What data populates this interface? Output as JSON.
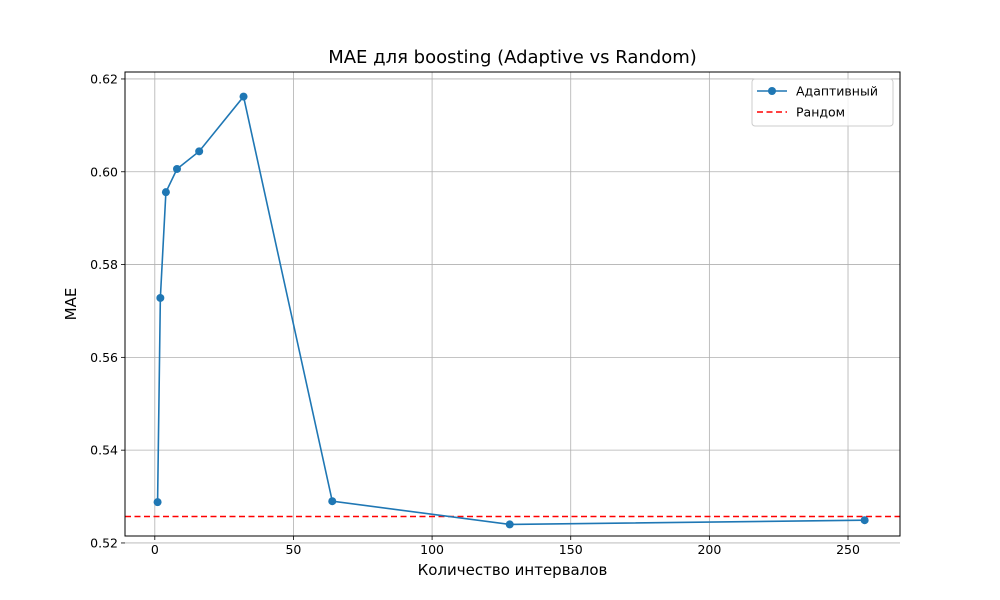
{
  "chart_data": {
    "type": "line",
    "title": "MAE для boosting (Adaptive vs Random)",
    "xlabel": "Количество интервалов",
    "ylabel": "MAE",
    "xlim": [
      -10.75,
      268.75
    ],
    "ylim": [
      0.5215,
      0.6215
    ],
    "xticks": [
      0,
      50,
      100,
      150,
      200,
      250
    ],
    "xtick_labels": [
      "0",
      "50",
      "100",
      "150",
      "200",
      "250"
    ],
    "yticks": [
      0.52,
      0.54,
      0.56,
      0.58,
      0.6,
      0.62
    ],
    "ytick_labels": [
      "0.52",
      "0.54",
      "0.56",
      "0.58",
      "0.60",
      "0.62"
    ],
    "grid": true,
    "legend_position": "top-right",
    "series": [
      {
        "name": "Адаптивный",
        "color": "#1f77b4",
        "style": "solid-with-markers",
        "x": [
          1,
          2,
          4,
          8,
          16,
          32,
          64,
          128,
          256
        ],
        "y": [
          0.5288,
          0.5728,
          0.5956,
          0.6006,
          0.6044,
          0.6162,
          0.529,
          0.524,
          0.5249
        ]
      },
      {
        "name": "Рандом",
        "color": "#ff0000",
        "style": "dashed-horizontal",
        "y": 0.5257
      }
    ]
  }
}
